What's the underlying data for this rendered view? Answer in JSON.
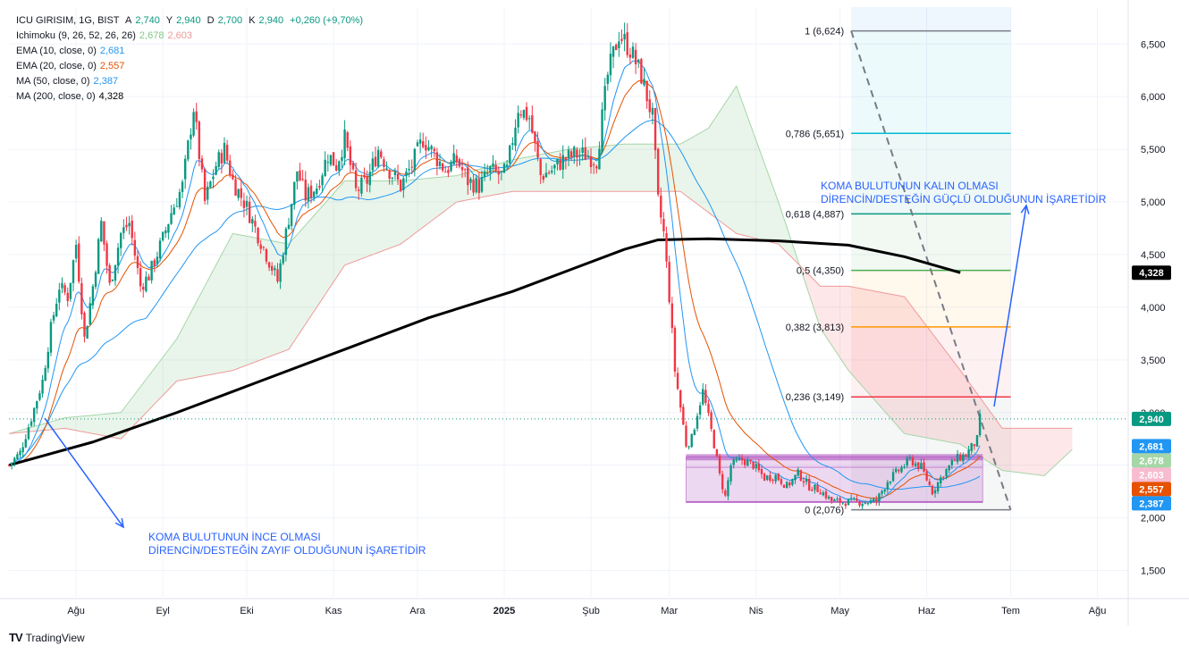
{
  "header": {
    "symbol": "ICU GIRISIM, 1G, BIST",
    "ohlc": [
      {
        "k": "A",
        "v": "2,740"
      },
      {
        "k": "Y",
        "v": "2,940"
      },
      {
        "k": "D",
        "v": "2,700"
      },
      {
        "k": "K",
        "v": "2,940"
      }
    ],
    "change": "+0,260 (+9,70%)",
    "change_color": "#089981"
  },
  "indicators": [
    {
      "label": "Ichimoku (9, 26, 52, 26, 26)",
      "values": [
        {
          "v": "2,678",
          "color": "#81c784"
        },
        {
          "v": "2,603",
          "color": "#ef9a9a"
        }
      ]
    },
    {
      "label": "EMA (10, close, 0)",
      "values": [
        {
          "v": "2,681",
          "color": "#2196f3"
        }
      ]
    },
    {
      "label": "EMA (20, close, 0)",
      "values": [
        {
          "v": "2,557",
          "color": "#e65100"
        }
      ]
    },
    {
      "label": "MA (50, close, 0)",
      "values": [
        {
          "v": "2,387",
          "color": "#2196f3"
        }
      ]
    },
    {
      "label": "MA (200, close, 0)",
      "values": [
        {
          "v": "4,328",
          "color": "#000000"
        }
      ]
    }
  ],
  "brand": "TradingView",
  "chart_data": {
    "type": "candlestick",
    "y_axis": {
      "ticks": [
        {
          "v": 1500,
          "label": "1,500"
        },
        {
          "v": 2000,
          "label": "2,000"
        },
        {
          "v": 2500,
          "label": "2,500"
        },
        {
          "v": 3000,
          "label": "3,000"
        },
        {
          "v": 3500,
          "label": "3,500"
        },
        {
          "v": 4000,
          "label": "4,000"
        },
        {
          "v": 4500,
          "label": "4,500"
        },
        {
          "v": 5000,
          "label": "5,000"
        },
        {
          "v": 5500,
          "label": "5,500"
        },
        {
          "v": 6000,
          "label": "6,000"
        },
        {
          "v": 6500,
          "label": "6,500"
        }
      ],
      "range": [
        1250,
        6850
      ]
    },
    "x_axis": {
      "ticks": [
        {
          "day": 24,
          "label": "Ağu"
        },
        {
          "day": 55,
          "label": "Eyl"
        },
        {
          "day": 85,
          "label": "Eki"
        },
        {
          "day": 116,
          "label": "Kas"
        },
        {
          "day": 146,
          "label": "Ara"
        },
        {
          "day": 177,
          "label": "2025",
          "bold": true
        },
        {
          "day": 208,
          "label": "Şub"
        },
        {
          "day": 236,
          "label": "Mar"
        },
        {
          "day": 267,
          "label": "Nis"
        },
        {
          "day": 297,
          "label": "May"
        },
        {
          "day": 328,
          "label": "Haz"
        },
        {
          "day": 358,
          "label": "Tem"
        },
        {
          "day": 389,
          "label": "Ağu"
        }
      ],
      "range": [
        0,
        400
      ]
    },
    "price_key": [
      [
        0,
        2500
      ],
      [
        4,
        2620
      ],
      [
        8,
        2950
      ],
      [
        12,
        3300
      ],
      [
        15,
        3800
      ],
      [
        18,
        4200
      ],
      [
        21,
        4100
      ],
      [
        24,
        4600
      ],
      [
        27,
        3700
      ],
      [
        30,
        4200
      ],
      [
        33,
        4800
      ],
      [
        36,
        4200
      ],
      [
        40,
        4700
      ],
      [
        43,
        4800
      ],
      [
        47,
        4200
      ],
      [
        50,
        4300
      ],
      [
        55,
        4650
      ],
      [
        58,
        4900
      ],
      [
        62,
        5150
      ],
      [
        66,
        5900
      ],
      [
        70,
        5000
      ],
      [
        74,
        5350
      ],
      [
        77,
        5500
      ],
      [
        80,
        5200
      ],
      [
        85,
        4950
      ],
      [
        88,
        4750
      ],
      [
        92,
        4500
      ],
      [
        96,
        4250
      ],
      [
        100,
        4850
      ],
      [
        103,
        5300
      ],
      [
        106,
        5050
      ],
      [
        110,
        5150
      ],
      [
        114,
        5450
      ],
      [
        117,
        5350
      ],
      [
        120,
        5600
      ],
      [
        124,
        5100
      ],
      [
        128,
        5200
      ],
      [
        132,
        5500
      ],
      [
        136,
        5300
      ],
      [
        140,
        5150
      ],
      [
        144,
        5350
      ],
      [
        148,
        5600
      ],
      [
        152,
        5450
      ],
      [
        156,
        5300
      ],
      [
        160,
        5400
      ],
      [
        164,
        5200
      ],
      [
        168,
        5150
      ],
      [
        172,
        5300
      ],
      [
        176,
        5250
      ],
      [
        178,
        5300
      ],
      [
        182,
        5900
      ],
      [
        186,
        5800
      ],
      [
        190,
        5250
      ],
      [
        194,
        5300
      ],
      [
        198,
        5400
      ],
      [
        202,
        5450
      ],
      [
        206,
        5450
      ],
      [
        210,
        5400
      ],
      [
        214,
        6200
      ],
      [
        218,
        6600
      ],
      [
        222,
        6450
      ],
      [
        226,
        6200
      ],
      [
        230,
        5800
      ],
      [
        232,
        5000
      ],
      [
        234,
        4700
      ],
      [
        236,
        4100
      ],
      [
        238,
        3400
      ],
      [
        240,
        3050
      ],
      [
        242,
        2700
      ],
      [
        244,
        2750
      ],
      [
        246,
        3000
      ],
      [
        248,
        3200
      ],
      [
        250,
        2950
      ],
      [
        252,
        2700
      ],
      [
        254,
        2400
      ],
      [
        256,
        2200
      ],
      [
        258,
        2500
      ],
      [
        262,
        2550
      ],
      [
        266,
        2500
      ],
      [
        270,
        2380
      ],
      [
        274,
        2400
      ],
      [
        278,
        2300
      ],
      [
        282,
        2420
      ],
      [
        286,
        2300
      ],
      [
        290,
        2260
      ],
      [
        294,
        2160
      ],
      [
        298,
        2150
      ],
      [
        302,
        2150
      ],
      [
        306,
        2150
      ],
      [
        310,
        2160
      ],
      [
        314,
        2350
      ],
      [
        318,
        2450
      ],
      [
        322,
        2550
      ],
      [
        326,
        2480
      ],
      [
        330,
        2250
      ],
      [
        334,
        2420
      ],
      [
        338,
        2550
      ],
      [
        342,
        2600
      ],
      [
        346,
        2740
      ],
      [
        347,
        2940
      ]
    ],
    "series": [
      {
        "name": "EMA (10, close, 0)",
        "color": "#2196f3",
        "last": 2681
      },
      {
        "name": "EMA (20, close, 0)",
        "color": "#e65100",
        "last": 2557
      },
      {
        "name": "MA (50, close, 0)",
        "color": "#2196f3",
        "last": 2387
      },
      {
        "name": "MA (200, close, 0)",
        "color": "#000000",
        "last": 4328,
        "points": [
          [
            0,
            2500
          ],
          [
            30,
            2720
          ],
          [
            60,
            3000
          ],
          [
            90,
            3300
          ],
          [
            120,
            3600
          ],
          [
            150,
            3900
          ],
          [
            180,
            4150
          ],
          [
            200,
            4350
          ],
          [
            220,
            4550
          ],
          [
            232,
            4640
          ],
          [
            250,
            4650
          ],
          [
            275,
            4630
          ],
          [
            300,
            4590
          ],
          [
            320,
            4480
          ],
          [
            340,
            4328
          ]
        ]
      }
    ],
    "cloud_span_a": [
      [
        0,
        2800
      ],
      [
        20,
        2950
      ],
      [
        40,
        3000
      ],
      [
        60,
        3700
      ],
      [
        80,
        4700
      ],
      [
        100,
        4600
      ],
      [
        120,
        5200
      ],
      [
        140,
        5200
      ],
      [
        160,
        5250
      ],
      [
        180,
        5400
      ],
      [
        200,
        5500
      ],
      [
        220,
        5550
      ],
      [
        240,
        5550
      ],
      [
        250,
        5700
      ],
      [
        260,
        6100
      ],
      [
        275,
        5000
      ],
      [
        290,
        3800
      ],
      [
        300,
        3400
      ],
      [
        310,
        3100
      ],
      [
        320,
        2800
      ],
      [
        340,
        2700
      ],
      [
        355,
        2450
      ],
      [
        370,
        2400
      ],
      [
        380,
        2650
      ]
    ],
    "cloud_span_b": [
      [
        0,
        2800
      ],
      [
        20,
        2850
      ],
      [
        40,
        2750
      ],
      [
        60,
        3300
      ],
      [
        80,
        3400
      ],
      [
        100,
        3600
      ],
      [
        120,
        4400
      ],
      [
        140,
        4600
      ],
      [
        160,
        5000
      ],
      [
        180,
        5100
      ],
      [
        200,
        5100
      ],
      [
        220,
        5100
      ],
      [
        240,
        5100
      ],
      [
        250,
        4900
      ],
      [
        260,
        4700
      ],
      [
        275,
        4600
      ],
      [
        290,
        4200
      ],
      [
        300,
        4200
      ],
      [
        310,
        4150
      ],
      [
        320,
        4100
      ],
      [
        340,
        3400
      ],
      [
        355,
        2850
      ],
      [
        370,
        2850
      ],
      [
        380,
        2850
      ]
    ],
    "fibonacci": [
      {
        "ratio": "1",
        "value": 6624,
        "label": "1 (6,624)",
        "color": "#787b86"
      },
      {
        "ratio": "0.786",
        "value": 5651,
        "label": "0,786 (5,651)",
        "color": "#00bcd4"
      },
      {
        "ratio": "0.618",
        "value": 4887,
        "label": "0,618 (4,887)",
        "color": "#089981"
      },
      {
        "ratio": "0.5",
        "value": 4350,
        "label": "0,5 (4,350)",
        "color": "#4caf50"
      },
      {
        "ratio": "0.382",
        "value": 3813,
        "label": "0,382 (3,813)",
        "color": "#ff9800"
      },
      {
        "ratio": "0.236",
        "value": 3149,
        "label": "0,236 (3,149)",
        "color": "#f23645"
      },
      {
        "ratio": "0",
        "value": 2076,
        "label": "0 (2,076)",
        "color": "#787b86"
      }
    ],
    "fib_day_range": [
      301,
      358
    ],
    "support_zone": {
      "day_from": 242,
      "day_to": 348,
      "top": 2580,
      "mid": 2480,
      "bottom": 2150
    },
    "last_price": {
      "value": 2940,
      "label": "2,940",
      "color": "#089981"
    },
    "price_tags": [
      {
        "label": "4,328",
        "value": 4328,
        "bg": "#000000",
        "fg": "#ffffff"
      },
      {
        "label": "2,940",
        "value": 2940,
        "bg": "#089981",
        "fg": "#ffffff"
      },
      {
        "label": "2,681",
        "value": 2681,
        "bg": "#2196f3",
        "fg": "#ffffff"
      },
      {
        "label": "2,678",
        "value": 2678,
        "bg": "#a5d6a7",
        "fg": "#131722"
      },
      {
        "label": "2,603",
        "value": 2603,
        "bg": "#f8bbd0",
        "fg": "#131722"
      },
      {
        "label": "2,557",
        "value": 2557,
        "bg": "#e65100",
        "fg": "#ffffff"
      },
      {
        "label": "2,387",
        "value": 2387,
        "bg": "#2196f3",
        "fg": "#ffffff"
      }
    ],
    "annotations": [
      {
        "lines": [
          "KOMA BULUTUNUN KALIN OLMASI",
          "DİRENCİN/DESTEĞİN GÜÇLÜ OLDUĞUNUN İŞARETİDİR"
        ],
        "color": "#2962ff"
      },
      {
        "lines": [
          "KOMA BULUTUNUN İNCE OLMASI",
          "DİRENCİN/DESTEĞİN ZAYIF OLDUĞUNUN İŞARETİDİR"
        ],
        "color": "#2962ff"
      }
    ]
  }
}
